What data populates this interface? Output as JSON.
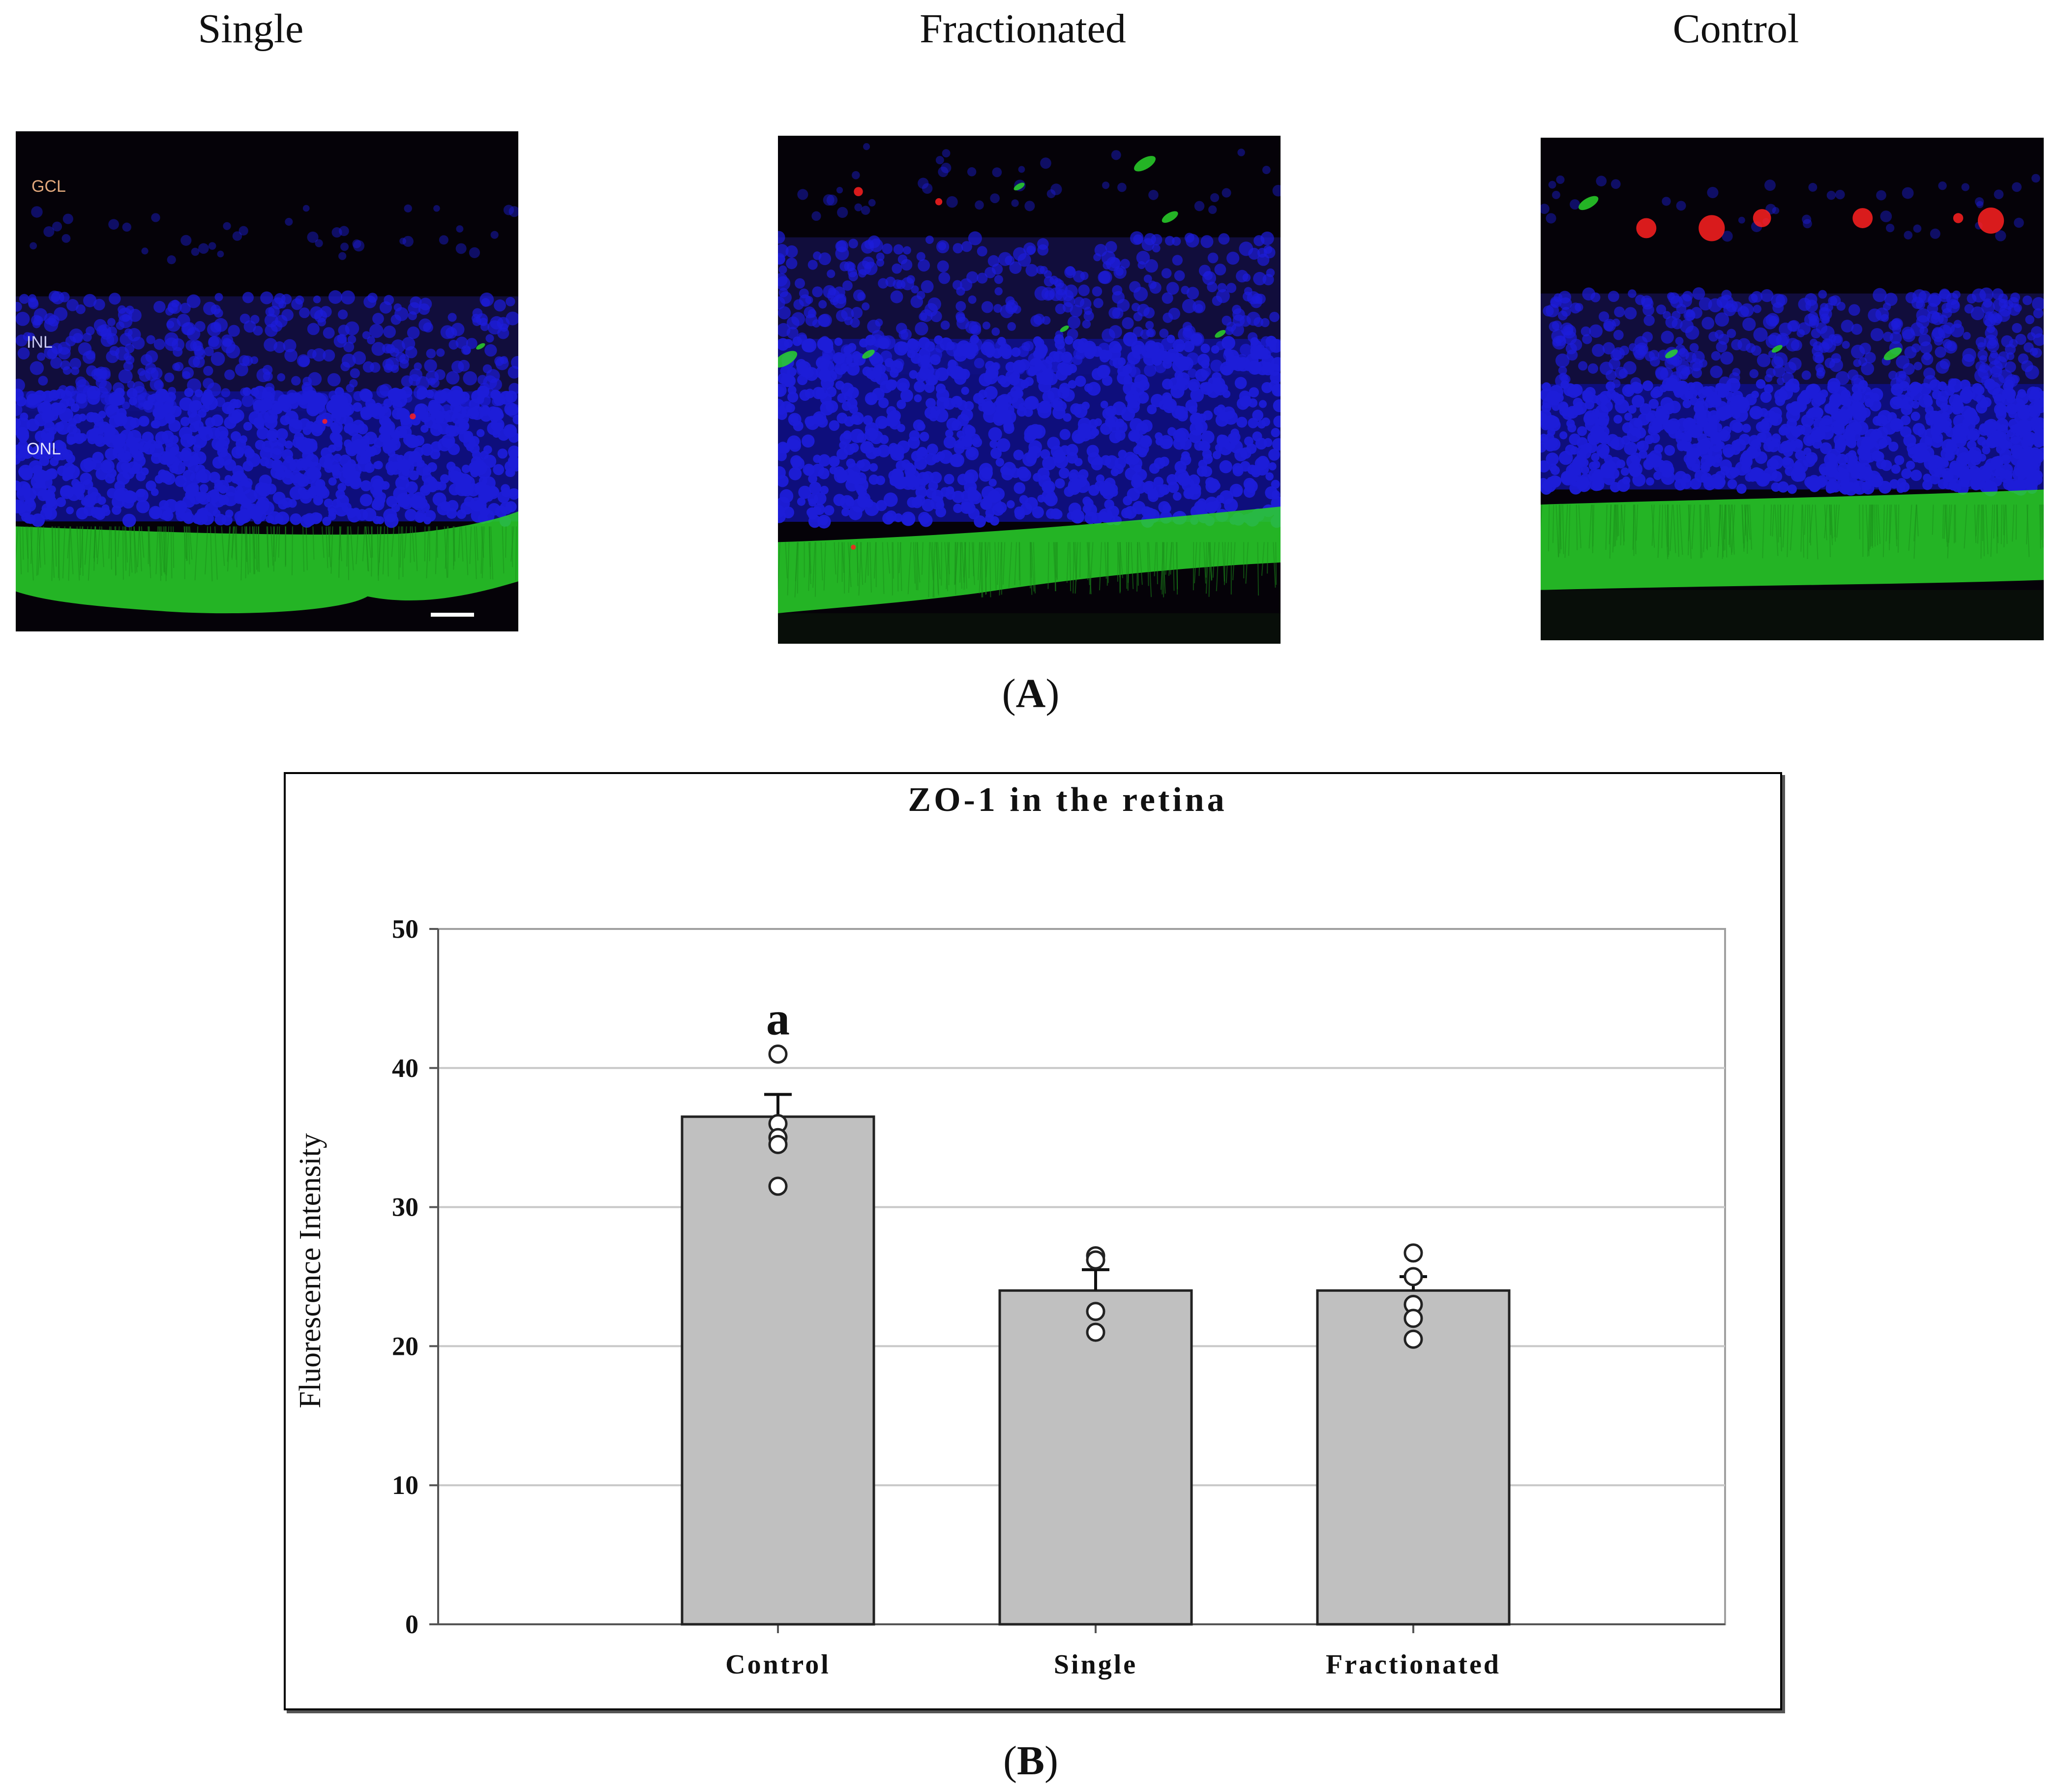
{
  "panel_a": {
    "titles": {
      "single": "Single",
      "fractionated": "Fractionated",
      "control": "Control"
    },
    "layer_labels": {
      "gcl": "GCL",
      "inl": "INL",
      "onl": "ONL"
    },
    "stain_colors": {
      "nuclei": "#1d1dd8",
      "zo1": "#2ad42a",
      "red": "#ff2020"
    },
    "letter_open": "(",
    "letter": "A",
    "letter_close": ")"
  },
  "panel_b": {
    "letter_open": "(",
    "letter": "B",
    "letter_close": ")"
  },
  "chart_data": {
    "type": "bar",
    "title": "ZO-1 in the retina",
    "xlabel": "",
    "ylabel": "Fluorescence Intensity",
    "ylim": [
      0,
      50
    ],
    "yticks": [
      0,
      10,
      20,
      30,
      40,
      50
    ],
    "grid": true,
    "legend": "none",
    "bar_color": "#c0c0c0",
    "categories": [
      "Control",
      "Single",
      "Fractionated"
    ],
    "values": [
      36.5,
      24,
      24
    ],
    "error_bars": [
      1.6,
      1.5,
      1.0
    ],
    "points": [
      [
        41,
        36,
        35,
        34.5,
        31.5
      ],
      [
        26.5,
        26.2,
        22.5,
        21
      ],
      [
        26.7,
        25,
        23,
        22,
        20.5
      ]
    ],
    "annotations": [
      {
        "category": "Control",
        "text": "a"
      }
    ]
  }
}
